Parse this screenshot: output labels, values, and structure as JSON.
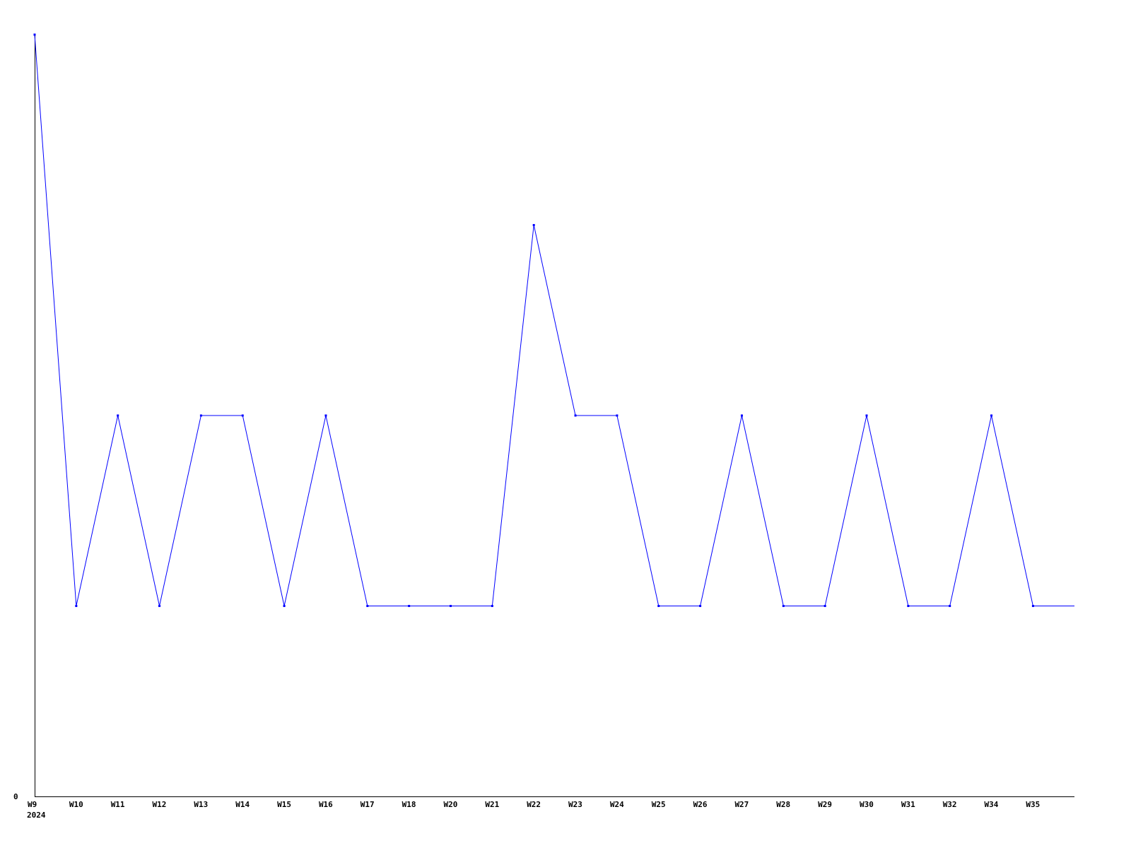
{
  "chart_data": {
    "type": "line",
    "title": "",
    "xlabel": "",
    "ylabel": "",
    "categories": [
      "W9",
      "W10",
      "W11",
      "W12",
      "W13",
      "W14",
      "W15",
      "W16",
      "W17",
      "W18",
      "W20",
      "W21",
      "W22",
      "W23",
      "W24",
      "W25",
      "W26",
      "W27",
      "W28",
      "W29",
      "W30",
      "W31",
      "W32",
      "W34",
      "W35"
    ],
    "year_label": "2024",
    "y_tick_labels": [
      "0"
    ],
    "ylim": [
      0,
      4
    ],
    "grid": false,
    "legend": "none",
    "series": [
      {
        "color": "#0000ff",
        "values": [
          4,
          1,
          2,
          1,
          2,
          2,
          1,
          2,
          1,
          1,
          1,
          1,
          3,
          2,
          2,
          1,
          1,
          2,
          1,
          1,
          2,
          1,
          1,
          2,
          1
        ]
      }
    ],
    "line_continues_right": true
  }
}
